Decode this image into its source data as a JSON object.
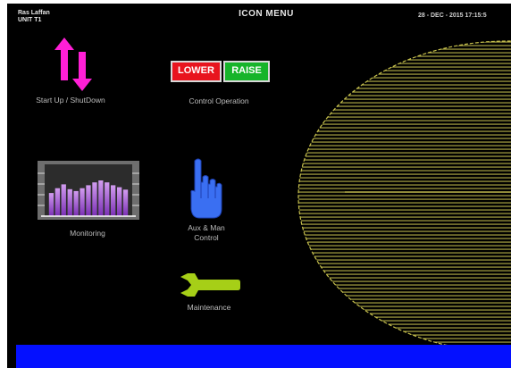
{
  "header": {
    "station_line1": "Ras Laffan",
    "station_line2": "UNIT T1",
    "title": "ICON  MENU",
    "datetime": "28 - DEC - 2015   17:15:5"
  },
  "menu": {
    "startup_label": "Start Up / ShutDown",
    "control_label": "Control  Operation",
    "lower_label": "LOWER",
    "raise_label": "RAISE",
    "monitoring_label": "Monitoring",
    "aux_label_line1": "Aux  &  Man",
    "aux_label_line2": "Control",
    "maintenance_label": "Maintenance"
  },
  "colors": {
    "background": "#000000",
    "arrow": "#ff1fd6",
    "lower": "#e8141e",
    "raise": "#16b42a",
    "hand": "#3a6ff2",
    "wrench": "#a6cf17",
    "ellipse_lines": "#b8b24a",
    "bottom_bar": "#0410ff"
  },
  "icons": {
    "startup": "up-down-arrows-icon",
    "monitoring": "bar-graph-icon",
    "aux": "pointing-hand-icon",
    "maintenance": "wrench-icon",
    "turbine": "hatched-ellipse-graphic"
  },
  "monitor_bars": [
    0.48,
    0.58,
    0.66,
    0.56,
    0.52,
    0.58,
    0.64,
    0.7,
    0.74,
    0.7,
    0.64,
    0.6,
    0.55
  ]
}
